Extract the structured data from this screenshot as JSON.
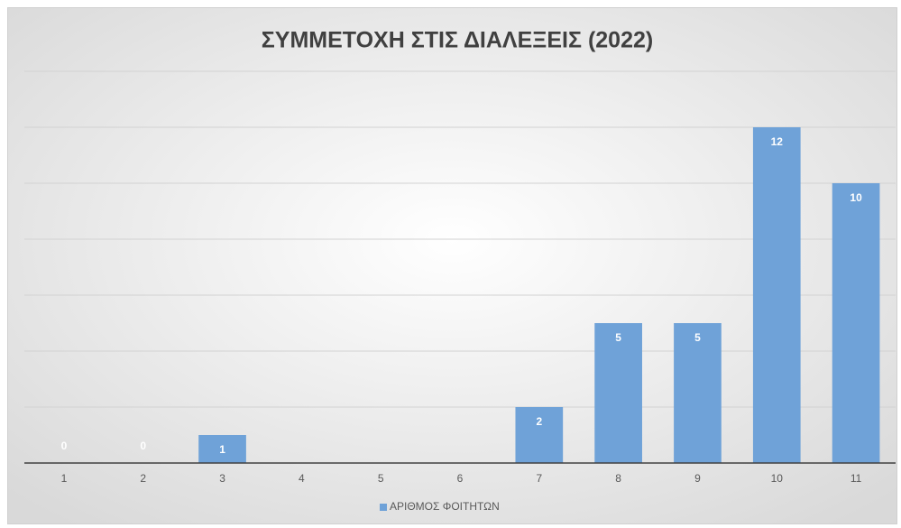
{
  "chart_data": {
    "type": "bar",
    "title": "ΣΥΜΜΕΤΟΧΗ ΣΤΙΣ ΔΙΑΛΕΞΕΙΣ (2022)",
    "categories": [
      "1",
      "2",
      "3",
      "4",
      "5",
      "6",
      "7",
      "8",
      "9",
      "10",
      "11"
    ],
    "series": [
      {
        "name": "ΑΡΙΘΜΟΣ ΦΟΙΤΗΤΩΝ",
        "color": "#6fa2d8",
        "values": [
          0,
          0,
          1,
          null,
          null,
          null,
          2,
          5,
          5,
          12,
          10
        ]
      }
    ],
    "ylim": [
      0,
      14
    ],
    "yticks": [
      0,
      2,
      4,
      6,
      8,
      10,
      12,
      14
    ],
    "grid": true,
    "legend": "bottom"
  }
}
